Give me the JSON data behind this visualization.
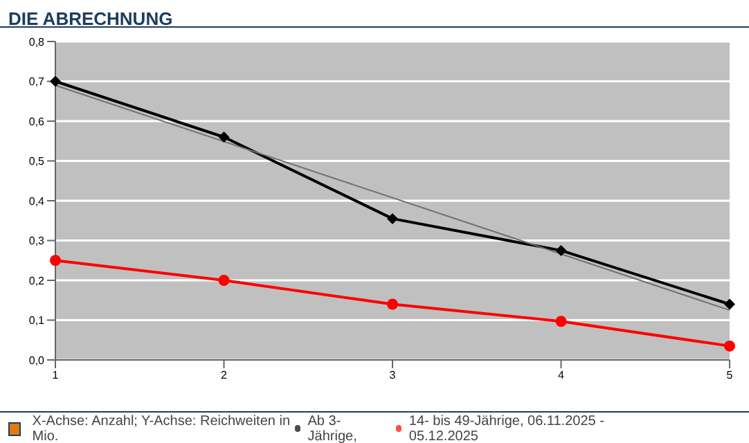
{
  "chart_data": {
    "type": "line",
    "title": "DIE ABRECHNUNG",
    "categories": [
      "1",
      "2",
      "3",
      "4",
      "5"
    ],
    "series": [
      {
        "name": "Ab 3-Jährige,",
        "color": "#000000",
        "marker": "diamond",
        "values": [
          0.7,
          0.56,
          0.355,
          0.275,
          0.14
        ]
      },
      {
        "name": "14- bis 49-Jährige, 06.11.2025 - 05.12.2025",
        "color": "#ff0000",
        "marker": "circle",
        "values": [
          0.25,
          0.2,
          0.14,
          0.097,
          0.035
        ]
      },
      {
        "type": "line",
        "color": "#707070",
        "marker": "none",
        "x": [
          "1",
          "5"
        ],
        "values": [
          0.69,
          0.125
        ]
      }
    ],
    "ylim": [
      0,
      0.8
    ],
    "yticks": [
      {
        "value": 0,
        "label": "0,0"
      },
      {
        "value": 0.1,
        "label": "0,1"
      },
      {
        "value": 0.2,
        "label": "0,2"
      },
      {
        "value": 0.3,
        "label": "0,3"
      },
      {
        "value": 0.4,
        "label": "0,4"
      },
      {
        "value": 0.5,
        "label": "0,5"
      },
      {
        "value": 0.6,
        "label": "0,6"
      },
      {
        "value": 0.7,
        "label": "0,7"
      },
      {
        "value": 0.8,
        "label": "0,8"
      }
    ],
    "grid": "y",
    "legend": "bottom",
    "annotations": [
      "X-Achse: Anzahl; Y-Achse: Reichweiten in Mio."
    ]
  }
}
